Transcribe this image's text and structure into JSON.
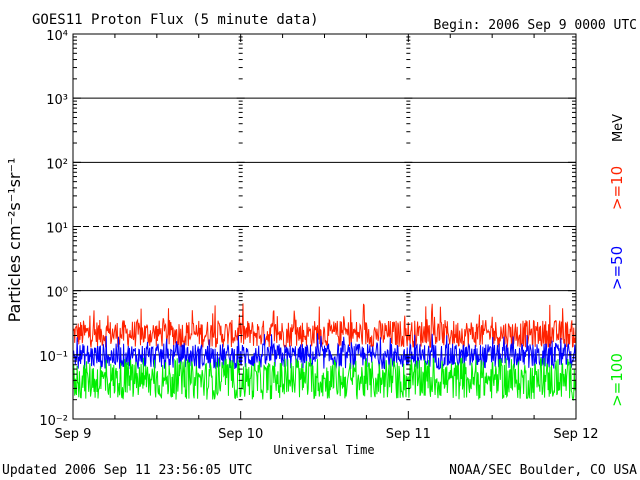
{
  "header": {
    "title": "GOES11 Proton Flux (5 minute data)",
    "begin": "Begin: 2006 Sep 9 0000 UTC"
  },
  "footer": {
    "updated": "Updated 2006 Sep 11 23:56:05 UTC",
    "credit": "NOAA/SEC Boulder, CO USA"
  },
  "colors": {
    "ge10": "#ff2200",
    "ge50": "#0000ff",
    "ge100": "#00ee00",
    "axis": "#000000"
  },
  "chart_data": {
    "type": "line",
    "title": "GOES11 Proton Flux (5 minute data)",
    "xlabel": "Universal Time",
    "ylabel": "Particles cm⁻²s⁻¹sr⁻¹",
    "x_tick_labels": [
      "Sep 9",
      "Sep 10",
      "Sep 11",
      "Sep 12"
    ],
    "xlim": [
      "2006-09-09T00:00Z",
      "2006-09-12T00:00Z"
    ],
    "y_scale": "log",
    "ylim": [
      0.01,
      10000
    ],
    "y_tick_labels": [
      "10⁻²",
      "10⁻¹",
      "10⁰",
      "10¹",
      "10²",
      "10³",
      "10⁴"
    ],
    "y_tick_values": [
      0.01,
      0.1,
      1,
      10,
      100,
      1000,
      10000
    ],
    "threshold_line": 10,
    "grid": true,
    "legend_placement": "right",
    "legend_unit": "MeV",
    "series": [
      {
        "name": ">=10",
        "color": "#ff2200",
        "typical_low": 0.13,
        "typical_high": 0.35,
        "peak": 0.65
      },
      {
        "name": ">=50",
        "color": "#0000ff",
        "typical_low": 0.06,
        "typical_high": 0.15,
        "peak": 0.22
      },
      {
        "name": ">=100",
        "color": "#00ee00",
        "typical_low": 0.02,
        "typical_high": 0.08,
        "peak": 0.09
      }
    ]
  }
}
